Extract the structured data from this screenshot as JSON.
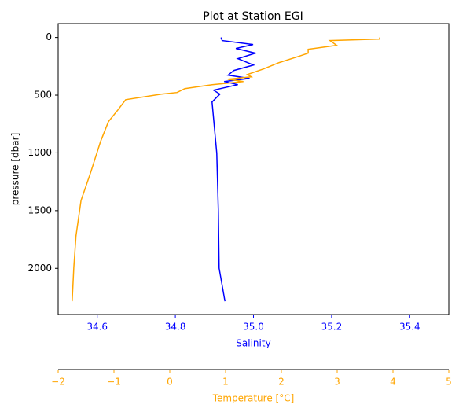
{
  "chart_data": {
    "type": "profile",
    "title": "Plot at Station EGI",
    "ylabel": "pressure [dbar]",
    "xlabel": "Salinity",
    "x2label": "Temperature [°C]",
    "ylim": [
      2400,
      -120
    ],
    "yticks": [
      0,
      500,
      1000,
      1500,
      2000
    ],
    "xlim": [
      34.5,
      35.5
    ],
    "xticks": [
      34.6,
      34.8,
      {
        "value": 35,
        "label": "35.0"
      },
      35.2,
      35.4
    ],
    "xcolor": "#0000ff",
    "x2lim": [
      -2,
      5
    ],
    "x2ticks": [
      {
        "value": -2,
        "label": "−2"
      },
      {
        "value": -1,
        "label": "−1"
      },
      0,
      1,
      2,
      3,
      4,
      5
    ],
    "x2color": "#ffa500",
    "series": [
      {
        "color": "#0000ff",
        "axis": "x",
        "values": [
          34.917,
          34.92,
          34.999,
          34.955,
          35.005,
          34.96,
          35.0,
          34.95,
          34.935,
          34.99,
          34.925,
          34.96,
          34.898,
          34.914,
          34.894,
          34.906,
          34.91,
          34.912,
          34.927
        ],
        "pressure": [
          0,
          27,
          61,
          95,
          136,
          184,
          239,
          286,
          327,
          355,
          382,
          409,
          457,
          491,
          559,
          1003,
          1500,
          1999,
          2285
        ]
      },
      {
        "color": "#ffa500",
        "axis": "x2",
        "values": [
          3.76,
          3.76,
          2.87,
          2.99,
          2.48,
          2.48,
          2.31,
          1.96,
          1.68,
          1.39,
          1.46,
          1.04,
          1.32,
          0.76,
          0.27,
          0.13,
          -0.15,
          -0.79,
          -0.93,
          -1.1,
          -1.24,
          -1.42,
          -1.59,
          -1.68,
          -1.72,
          -1.75
        ],
        "pressure": [
          0,
          14,
          27,
          68,
          102,
          136,
          164,
          218,
          273,
          321,
          341,
          362,
          382,
          409,
          443,
          477,
          491,
          539,
          628,
          730,
          900,
          1173,
          1412,
          1719,
          1992,
          2285
        ]
      }
    ]
  }
}
